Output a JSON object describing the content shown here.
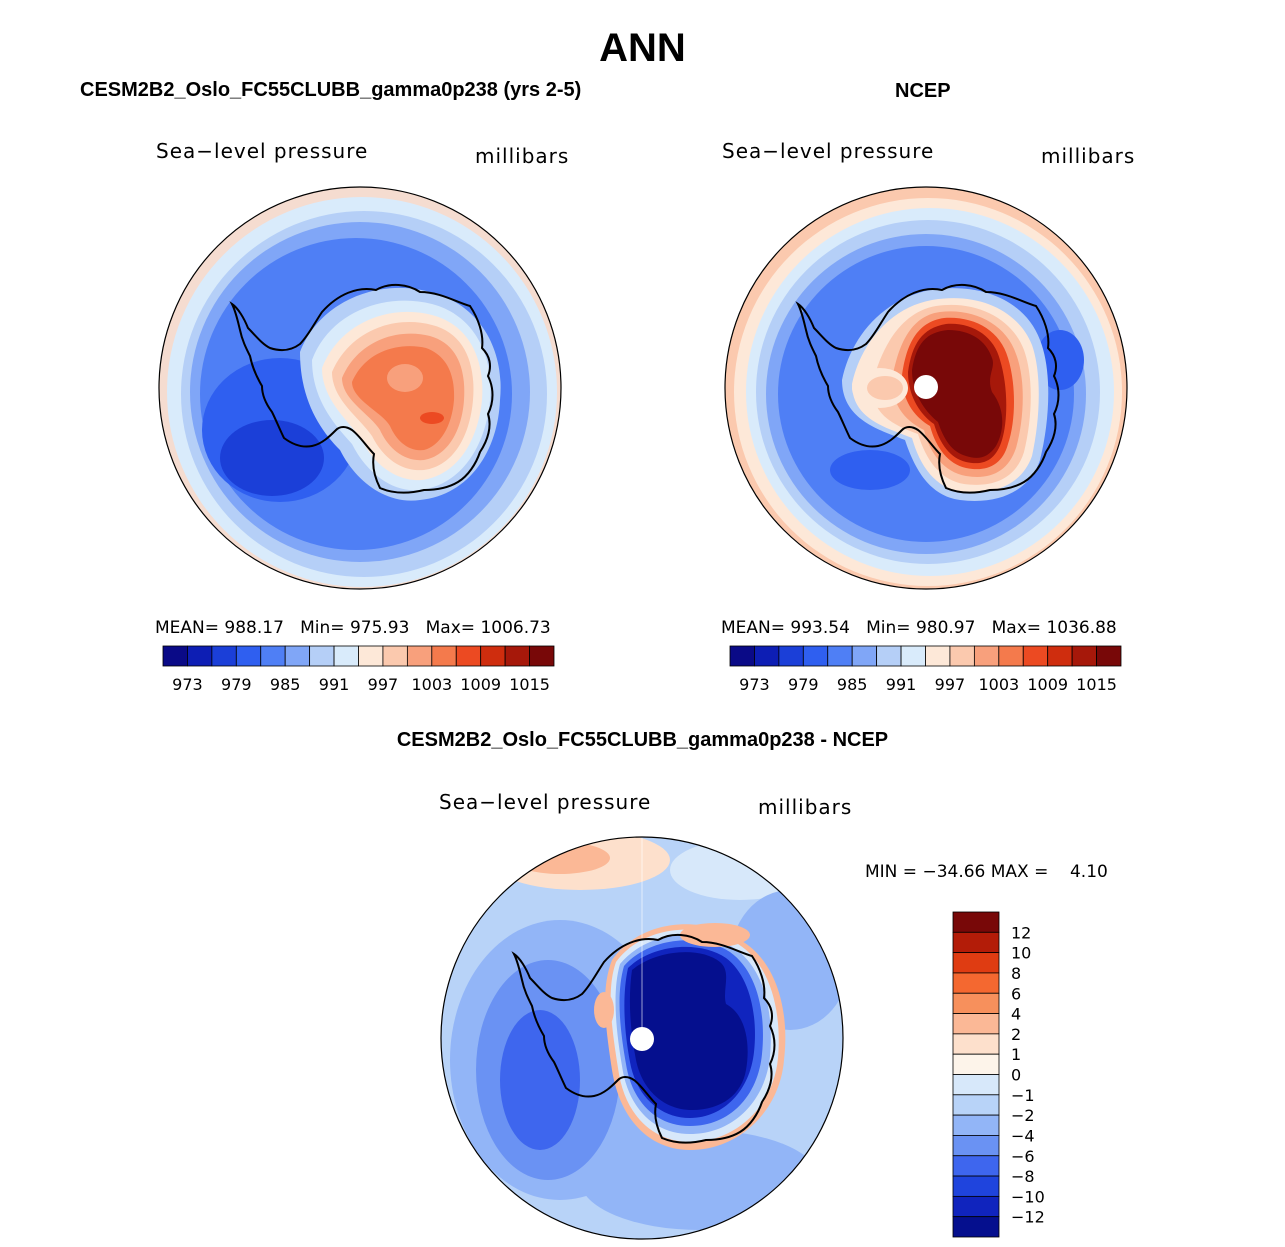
{
  "figure": {
    "title": "ANN"
  },
  "panels": [
    {
      "case_title": "CESM2B2_Oslo_FC55CLUBB_gamma0p238 (yrs 2-5)",
      "variable": "Sea−level pressure",
      "units": "millibars",
      "stats": {
        "mean_label": "MEAN=",
        "mean": "988.17",
        "min_label": "Min=",
        "min": "975.93",
        "max_label": "Max=",
        "max": "1006.73"
      }
    },
    {
      "case_title": "NCEP",
      "variable": "Sea−level pressure",
      "units": "millibars",
      "stats": {
        "mean_label": "MEAN=",
        "mean": "993.54",
        "min_label": "Min=",
        "min": "980.97",
        "max_label": "Max=",
        "max": "1036.88"
      }
    },
    {
      "case_title": "CESM2B2_Oslo_FC55CLUBB_gamma0p238 - NCEP",
      "variable": "Sea−level pressure",
      "units": "millibars",
      "stats_text": "MIN = −34.66 MAX =    4.10"
    }
  ],
  "chart_data": [
    {
      "type": "heatmap",
      "projection": "south-polar-stereographic",
      "title": "CESM2B2_Oslo_FC55CLUBB_gamma0p238 (yrs 2-5)",
      "variable": "Sea-level pressure",
      "units": "millibars",
      "mean": 988.17,
      "min": 975.93,
      "max": 1006.73,
      "contour_levels": [
        973,
        976,
        979,
        982,
        985,
        988,
        991,
        994,
        997,
        1000,
        1003,
        1006,
        1009,
        1012,
        1015
      ],
      "colorbar_tick_labels": [
        "973",
        "979",
        "985",
        "991",
        "997",
        "1003",
        "1009",
        "1015"
      ],
      "colors": [
        "#0a0a87",
        "#0d1eb4",
        "#1b3fd8",
        "#2f5ff0",
        "#4f7ff5",
        "#80a6f7",
        "#b5cff7",
        "#d9ebfb",
        "#fde8d8",
        "#fbc9ae",
        "#f8a07c",
        "#f47a4c",
        "#ec4a22",
        "#cf2d0e",
        "#a6180a",
        "#780808"
      ]
    },
    {
      "type": "heatmap",
      "projection": "south-polar-stereographic",
      "title": "NCEP",
      "variable": "Sea-level pressure",
      "units": "millibars",
      "mean": 993.54,
      "min": 980.97,
      "max": 1036.88,
      "contour_levels": [
        973,
        976,
        979,
        982,
        985,
        988,
        991,
        994,
        997,
        1000,
        1003,
        1006,
        1009,
        1012,
        1015
      ],
      "colorbar_tick_labels": [
        "973",
        "979",
        "985",
        "991",
        "997",
        "1003",
        "1009",
        "1015"
      ],
      "colors": [
        "#0a0a87",
        "#0d1eb4",
        "#1b3fd8",
        "#2f5ff0",
        "#4f7ff5",
        "#80a6f7",
        "#b5cff7",
        "#d9ebfb",
        "#fde8d8",
        "#fbc9ae",
        "#f8a07c",
        "#f47a4c",
        "#ec4a22",
        "#cf2d0e",
        "#a6180a",
        "#780808"
      ]
    },
    {
      "type": "heatmap",
      "projection": "south-polar-stereographic",
      "title": "CESM2B2_Oslo_FC55CLUBB_gamma0p238 - NCEP",
      "variable": "Sea-level pressure",
      "units": "millibars",
      "min": -34.66,
      "max": 4.1,
      "contour_levels": [
        -12,
        -10,
        -8,
        -6,
        -4,
        -2,
        -1,
        0,
        1,
        2,
        4,
        6,
        8,
        10,
        12
      ],
      "colorbar_tick_labels": [
        "12",
        "10",
        "8",
        "6",
        "4",
        "2",
        "1",
        "0",
        "−1",
        "−2",
        "−4",
        "−6",
        "−8",
        "−10",
        "−12"
      ],
      "colors": [
        "#780808",
        "#b31c08",
        "#df3c12",
        "#f46830",
        "#f7905c",
        "#fbb896",
        "#fde0cc",
        "#fdf4ea",
        "#d7e8fa",
        "#b8d3f8",
        "#92b5f7",
        "#6a92f3",
        "#3e66ee",
        "#1f44dd",
        "#1024be",
        "#050f8e"
      ]
    }
  ]
}
